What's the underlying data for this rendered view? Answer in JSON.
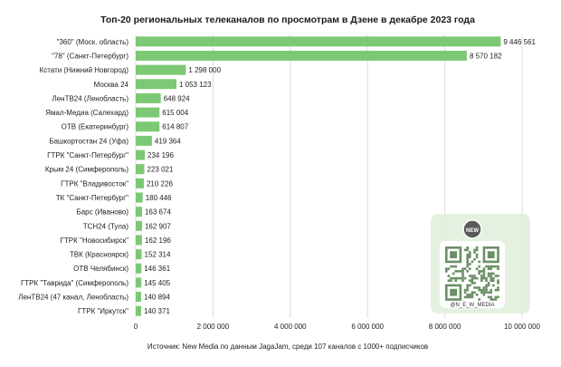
{
  "chart_data": {
    "type": "bar",
    "orientation": "horizontal",
    "title": "Топ-20 региональных телеканалов по просмотрам в Дзене в декабре 2023 года",
    "categories": [
      "\"360\" (Моск. область)",
      "\"78\" (Санкт-Петербург)",
      "Кстати (Нижний Новгород)",
      "Москва 24",
      "ЛенТВ24 (Ленобласть)",
      "Ямал-Медиа (Салехард)",
      "ОТВ (Екатеринбург)",
      "Башкортостан 24 (Уфа)",
      "ГТРК \"Санкт-Петербург\"",
      "Крым 24 (Симферополь)",
      "ГТРК \"Владивосток\"",
      "ТК \"Санкт-Петербург\"",
      "Барс (Иваново)",
      "ТСН24 (Тула)",
      "ГТРК \"Новосибирск\"",
      "ТВК (Красноярск)",
      "ОТВ Челябинск)",
      "ГТРК \"Таврида\" (Симферополь)",
      "ЛенТВ24 (47 канал, Ленобласть)",
      "ГТРК \"Иркутск\""
    ],
    "values": [
      9446561,
      8570182,
      1298000,
      1053123,
      648924,
      615004,
      614807,
      419364,
      234196,
      223021,
      210226,
      180446,
      163674,
      162907,
      162196,
      152314,
      146361,
      145405,
      140894,
      140371
    ],
    "value_labels": [
      "9 446 561",
      "8 570 182",
      "1 298 000",
      "1 053 123",
      "648 924",
      "615 004",
      "614 807",
      "419 364",
      "234 196",
      "223 021",
      "210 226",
      "180 446",
      "163 674",
      "162 907",
      "162 196",
      "152 314",
      "146 361",
      "145 405",
      "140 894",
      "140 371"
    ],
    "xlim": [
      0,
      10000000
    ],
    "xticks": [
      0,
      2000000,
      4000000,
      6000000,
      8000000,
      10000000
    ],
    "xtick_labels": [
      "0",
      "2 000 000",
      "4 000 000",
      "6 000 000",
      "8 000 000",
      "10 000 000"
    ],
    "grid": true,
    "bar_color": "#7dc874",
    "source": "Источник: New Media по данным JagaJam, среди 107 каналов с 1000+ подписчиков"
  },
  "overlay": {
    "badge_text": "NEW",
    "handle": "@N_E_W_MEDIA",
    "badge_color": "#5a5a5a"
  }
}
